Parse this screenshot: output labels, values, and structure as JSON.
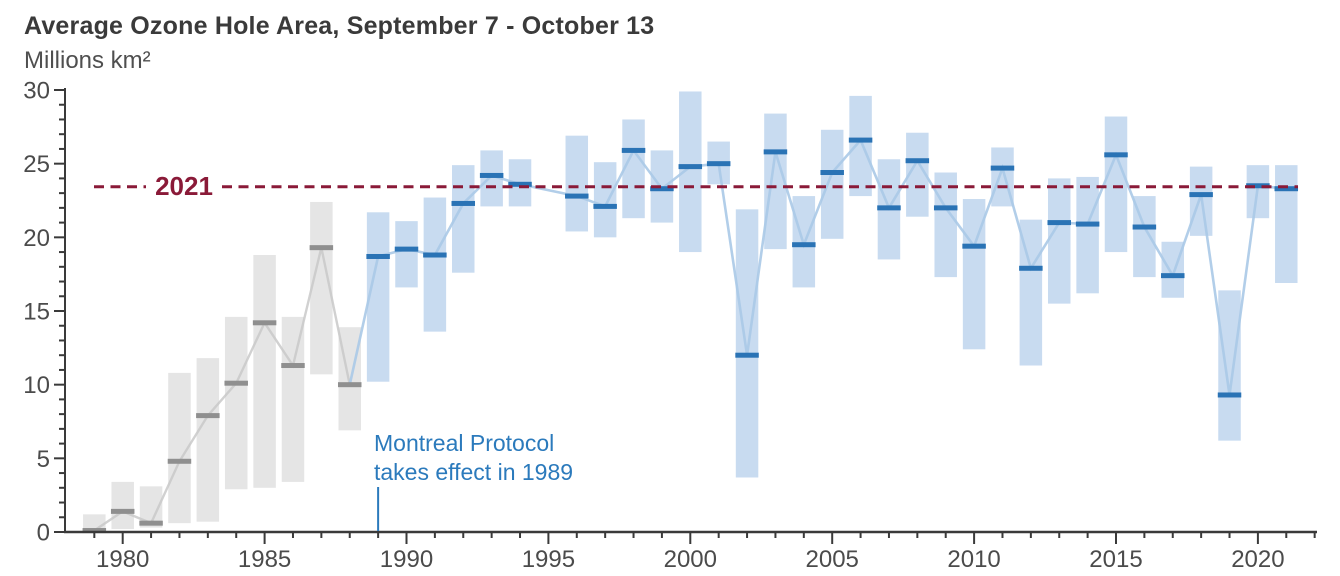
{
  "header": {
    "title": "Average Ozone Hole Area, September 7 - October 13",
    "subtitle": "Millions km²"
  },
  "reference_line": {
    "label": "2021",
    "value": 23.3,
    "color": "#8a1a38"
  },
  "annotation": {
    "line1": "Montreal Protocol",
    "line2": "takes effect in 1989",
    "pointer_year": 1989,
    "color": "#2b7abc"
  },
  "colors": {
    "pre_protocol_bar": "#e5e5e5",
    "pre_protocol_mean": "#8f8f8f",
    "pre_protocol_connector": "#c9c9c9",
    "post_protocol_bar": "#c8dbf0",
    "post_protocol_mean": "#2a73b5",
    "post_protocol_connector": "#aac9e7",
    "axis": "#3a3a3a",
    "tick_label": "#4b4b4b",
    "reference": "#8a1a38"
  },
  "chart_data": {
    "type": "bar",
    "title": "Average Ozone Hole Area, September 7 - October 13",
    "xlabel": "",
    "ylabel": "Millions km²",
    "legend": "none",
    "grid": false,
    "description": "Range bars show min-max of daily ozone hole area per year; horizontal tick marks the mean; a light line connects yearly means; dashed maroon line marks the 2021 mean level; gray bars are years before the Montreal Protocol took effect (1989), blue bars after; 1995 has no data.",
    "x_axis": {
      "start_year": 1979,
      "end_year": 2022,
      "major_ticks": [
        1980,
        1985,
        1990,
        1995,
        2000,
        2005,
        2010,
        2015,
        2020
      ],
      "minor_step": 1
    },
    "y_axis": {
      "min": 0,
      "max": 30,
      "major_ticks": [
        0,
        5,
        10,
        15,
        20,
        25,
        30
      ],
      "minor_step": 1
    },
    "series": [
      {
        "year": 1979,
        "mean": 0.1,
        "min": 0.1,
        "max": 1.2,
        "era": "pre"
      },
      {
        "year": 1980,
        "mean": 1.4,
        "min": 0.2,
        "max": 3.4,
        "era": "pre"
      },
      {
        "year": 1981,
        "mean": 0.6,
        "min": 0.3,
        "max": 3.1,
        "era": "pre"
      },
      {
        "year": 1982,
        "mean": 4.8,
        "min": 0.6,
        "max": 10.8,
        "era": "pre"
      },
      {
        "year": 1983,
        "mean": 7.9,
        "min": 0.7,
        "max": 11.8,
        "era": "pre"
      },
      {
        "year": 1984,
        "mean": 10.1,
        "min": 2.9,
        "max": 14.6,
        "era": "pre"
      },
      {
        "year": 1985,
        "mean": 14.2,
        "min": 3.0,
        "max": 18.8,
        "era": "pre"
      },
      {
        "year": 1986,
        "mean": 11.3,
        "min": 3.4,
        "max": 14.6,
        "era": "pre"
      },
      {
        "year": 1987,
        "mean": 19.3,
        "min": 10.7,
        "max": 22.4,
        "era": "pre"
      },
      {
        "year": 1988,
        "mean": 10.0,
        "min": 6.9,
        "max": 13.9,
        "era": "pre"
      },
      {
        "year": 1989,
        "mean": 18.7,
        "min": 10.2,
        "max": 21.7,
        "era": "post"
      },
      {
        "year": 1990,
        "mean": 19.2,
        "min": 16.6,
        "max": 21.1,
        "era": "post"
      },
      {
        "year": 1991,
        "mean": 18.8,
        "min": 13.6,
        "max": 22.7,
        "era": "post"
      },
      {
        "year": 1992,
        "mean": 22.3,
        "min": 17.6,
        "max": 24.9,
        "era": "post"
      },
      {
        "year": 1993,
        "mean": 24.2,
        "min": 22.1,
        "max": 25.9,
        "era": "post"
      },
      {
        "year": 1994,
        "mean": 23.6,
        "min": 22.1,
        "max": 25.3,
        "era": "post"
      },
      {
        "year": 1995,
        "mean": null,
        "min": null,
        "max": null,
        "era": "post"
      },
      {
        "year": 1996,
        "mean": 22.8,
        "min": 20.4,
        "max": 26.9,
        "era": "post"
      },
      {
        "year": 1997,
        "mean": 22.1,
        "min": 20.0,
        "max": 25.1,
        "era": "post"
      },
      {
        "year": 1998,
        "mean": 25.9,
        "min": 21.3,
        "max": 28.0,
        "era": "post"
      },
      {
        "year": 1999,
        "mean": 23.3,
        "min": 21.0,
        "max": 25.9,
        "era": "post"
      },
      {
        "year": 2000,
        "mean": 24.8,
        "min": 19.0,
        "max": 29.9,
        "era": "post"
      },
      {
        "year": 2001,
        "mean": 25.0,
        "min": 23.6,
        "max": 26.5,
        "era": "post"
      },
      {
        "year": 2002,
        "mean": 12.0,
        "min": 3.7,
        "max": 21.9,
        "era": "post"
      },
      {
        "year": 2003,
        "mean": 25.8,
        "min": 19.2,
        "max": 28.4,
        "era": "post"
      },
      {
        "year": 2004,
        "mean": 19.5,
        "min": 16.6,
        "max": 22.8,
        "era": "post"
      },
      {
        "year": 2005,
        "mean": 24.4,
        "min": 19.9,
        "max": 27.3,
        "era": "post"
      },
      {
        "year": 2006,
        "mean": 26.6,
        "min": 22.8,
        "max": 29.6,
        "era": "post"
      },
      {
        "year": 2007,
        "mean": 22.0,
        "min": 18.5,
        "max": 25.3,
        "era": "post"
      },
      {
        "year": 2008,
        "mean": 25.2,
        "min": 21.4,
        "max": 27.1,
        "era": "post"
      },
      {
        "year": 2009,
        "mean": 22.0,
        "min": 17.3,
        "max": 24.4,
        "era": "post"
      },
      {
        "year": 2010,
        "mean": 19.4,
        "min": 12.4,
        "max": 22.6,
        "era": "post"
      },
      {
        "year": 2011,
        "mean": 24.7,
        "min": 22.1,
        "max": 26.1,
        "era": "post"
      },
      {
        "year": 2012,
        "mean": 17.9,
        "min": 11.3,
        "max": 21.2,
        "era": "post"
      },
      {
        "year": 2013,
        "mean": 21.0,
        "min": 15.5,
        "max": 24.0,
        "era": "post"
      },
      {
        "year": 2014,
        "mean": 20.9,
        "min": 16.2,
        "max": 24.1,
        "era": "post"
      },
      {
        "year": 2015,
        "mean": 25.6,
        "min": 19.0,
        "max": 28.2,
        "era": "post"
      },
      {
        "year": 2016,
        "mean": 20.7,
        "min": 17.3,
        "max": 22.8,
        "era": "post"
      },
      {
        "year": 2017,
        "mean": 17.4,
        "min": 15.9,
        "max": 19.7,
        "era": "post"
      },
      {
        "year": 2018,
        "mean": 22.9,
        "min": 20.1,
        "max": 24.8,
        "era": "post"
      },
      {
        "year": 2019,
        "mean": 9.3,
        "min": 6.2,
        "max": 16.4,
        "era": "post"
      },
      {
        "year": 2020,
        "mean": 23.5,
        "min": 21.3,
        "max": 24.9,
        "era": "post"
      },
      {
        "year": 2021,
        "mean": 23.3,
        "min": 16.9,
        "max": 24.9,
        "era": "post"
      }
    ]
  }
}
